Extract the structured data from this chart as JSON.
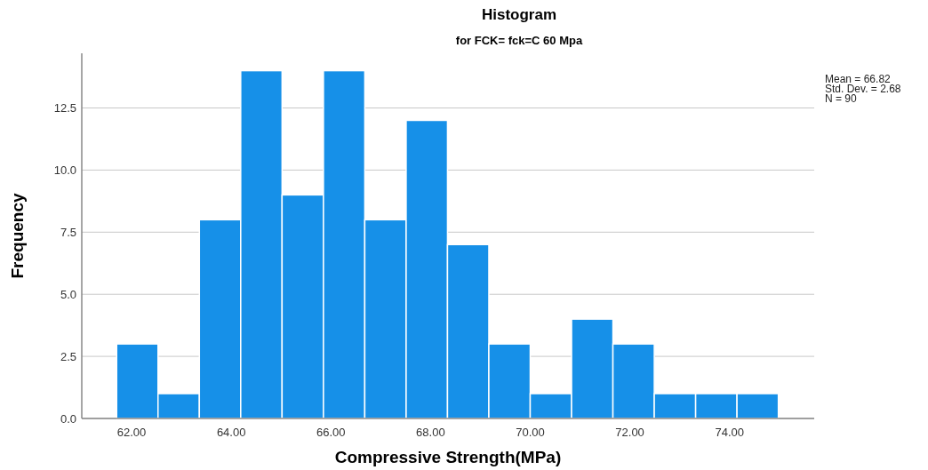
{
  "chart_data": {
    "type": "histogram",
    "title": "Histogram",
    "subtitle": "for FCK= fck=C 60 Mpa",
    "xlabel": "Compressive Strength(MPa)",
    "ylabel": "Frequency",
    "bins": [
      61.7,
      62.53,
      63.36,
      64.19,
      65.02,
      65.85,
      66.68,
      67.51,
      68.34,
      69.17,
      70.0,
      70.83,
      71.66,
      72.49,
      73.32,
      74.15,
      74.98
    ],
    "values": [
      3,
      1,
      8,
      14,
      9,
      14,
      8,
      12,
      7,
      3,
      1,
      4,
      3,
      1,
      1,
      1
    ],
    "color": "#1690e8",
    "xlim": [
      61.0,
      75.7
    ],
    "ylim": [
      0,
      14.7
    ],
    "xticks": [
      {
        "value": 62,
        "label": "62.00"
      },
      {
        "value": 64,
        "label": "64.00"
      },
      {
        "value": 66,
        "label": "66.00"
      },
      {
        "value": 68,
        "label": "68.00"
      },
      {
        "value": 70,
        "label": "70.00"
      },
      {
        "value": 72,
        "label": "72.00"
      },
      {
        "value": 74,
        "label": "74.00"
      }
    ],
    "yticks": [
      {
        "value": 0,
        "label": "0.0"
      },
      {
        "value": 2.5,
        "label": "2.5"
      },
      {
        "value": 5,
        "label": "5.0"
      },
      {
        "value": 7.5,
        "label": "7.5"
      },
      {
        "value": 10,
        "label": "10.0"
      },
      {
        "value": 12.5,
        "label": "12.5"
      }
    ],
    "grid": "y",
    "annotations": [
      "Mean = 66.82",
      "Std. Dev. = 2.68",
      "N = 90"
    ]
  }
}
